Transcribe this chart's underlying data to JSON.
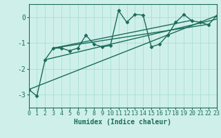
{
  "xlabel": "Humidex (Indice chaleur)",
  "bg_color": "#cff0ea",
  "line_color": "#1a6b5a",
  "grid_color": "#a8ddd6",
  "xmin": 0,
  "xmax": 23,
  "ymin": -3.5,
  "ymax": 0.5,
  "yticks": [
    -3,
    -2,
    -1,
    0
  ],
  "xticks": [
    0,
    1,
    2,
    3,
    4,
    5,
    6,
    7,
    8,
    9,
    10,
    11,
    12,
    13,
    14,
    15,
    16,
    17,
    18,
    19,
    20,
    21,
    22,
    23
  ],
  "series": [
    {
      "x": [
        0,
        1,
        2,
        3,
        4,
        5,
        6,
        7,
        8,
        9,
        10,
        11,
        12,
        13,
        14,
        15,
        16,
        17,
        18,
        19,
        20,
        21,
        22,
        23
      ],
      "y": [
        -2.8,
        -3.05,
        -1.65,
        -1.2,
        -1.2,
        -1.3,
        -1.2,
        -0.7,
        -1.05,
        -1.15,
        -1.1,
        0.25,
        -0.2,
        0.1,
        0.08,
        -1.15,
        -1.05,
        -0.7,
        -0.2,
        0.1,
        -0.15,
        -0.2,
        -0.3,
        0.05
      ],
      "marker": "D",
      "markersize": 2.5,
      "linewidth": 1.0
    },
    {
      "x": [
        0,
        23
      ],
      "y": [
        -2.8,
        0.05
      ],
      "marker": null,
      "markersize": 0,
      "linewidth": 1.0
    },
    {
      "x": [
        2,
        23
      ],
      "y": [
        -1.65,
        -0.08
      ],
      "marker": null,
      "markersize": 0,
      "linewidth": 1.0
    },
    {
      "x": [
        3,
        22
      ],
      "y": [
        -1.2,
        -0.28
      ],
      "marker": null,
      "markersize": 0,
      "linewidth": 1.0
    },
    {
      "x": [
        3,
        20
      ],
      "y": [
        -1.2,
        -0.12
      ],
      "marker": null,
      "markersize": 0,
      "linewidth": 1.0
    }
  ],
  "tick_fontsize": 6,
  "xlabel_fontsize": 7
}
